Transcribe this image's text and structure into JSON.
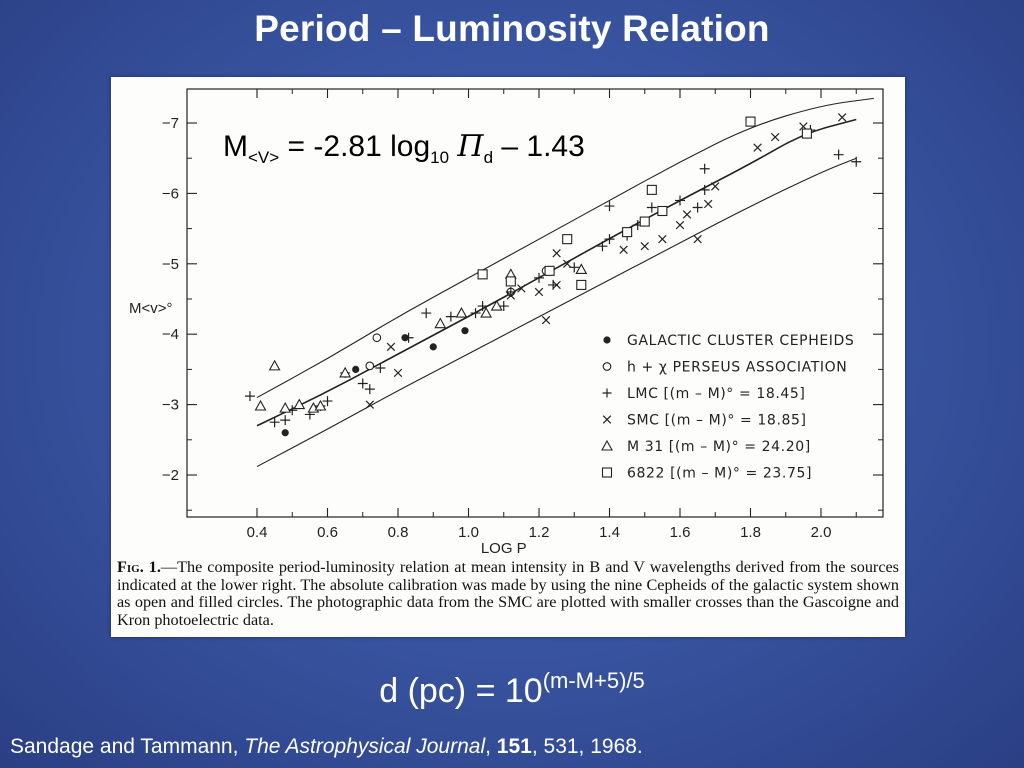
{
  "slide": {
    "title": "Period – Luminosity Relation",
    "equation": {
      "m_label": "M",
      "m_sub": "<V>",
      "rhs1": " = -2.81 log",
      "log_sub": "10",
      "pi": "Π",
      "pi_sub": "d",
      "rhs2": " – 1.43"
    },
    "distance": {
      "base": "d (pc) = 10",
      "exponent": "(m-M+5)/5"
    },
    "citation": {
      "authors": "Sandage and Tammann, ",
      "journal": "The Astrophysical Journal",
      "sep": ", ",
      "volume": "151",
      "rest": ", 531, 1968."
    }
  },
  "figure": {
    "caption_label": "Fig. 1.",
    "caption_text": "—The composite period-luminosity relation at mean intensity in B and V wavelengths derived from the sources indicated at the lower right. The absolute calibration was made by using the nine Cepheids of the galactic system shown as open and filled circles. The photographic data from the SMC are plotted with smaller crosses than the Gascoigne and Kron photoelectric data."
  },
  "chart_data": {
    "type": "scatter",
    "xlabel": "LOG P",
    "ylabel": "M<v>°",
    "xlim": [
      0.3,
      2.2
    ],
    "ylim": [
      -1.5,
      -7.5
    ],
    "x_ticks": [
      "0.4",
      "0.6",
      "0.8",
      "1.0",
      "1.2",
      "1.4",
      "1.6",
      "1.8",
      "2.0"
    ],
    "y_ticks": [
      "-7",
      "-6",
      "-5",
      "-4",
      "-3",
      "-2"
    ],
    "grid": false,
    "legend_position": "lower-right",
    "legend": [
      {
        "marker": "filled-circle",
        "label": "GALACTIC CLUSTER CEPHEIDS"
      },
      {
        "marker": "open-circle",
        "label": "h + χ  PERSEUS ASSOCIATION"
      },
      {
        "marker": "plus",
        "label": "LMC  [(m – M)° = 18.45]"
      },
      {
        "marker": "cross",
        "label": "SMC  [(m – M)° = 18.85]"
      },
      {
        "marker": "triangle",
        "label": "M 31  [(m – M)° = 24.20]"
      },
      {
        "marker": "square",
        "label": "6822  [(m – M)° = 23.75]"
      }
    ],
    "fit_line": [
      [
        0.4,
        -2.7
      ],
      [
        0.6,
        -3.18
      ],
      [
        0.8,
        -3.72
      ],
      [
        1.0,
        -4.25
      ],
      [
        1.2,
        -4.8
      ],
      [
        1.4,
        -5.36
      ],
      [
        1.6,
        -5.9
      ],
      [
        1.8,
        -6.42
      ],
      [
        1.95,
        -6.85
      ],
      [
        2.1,
        -7.05
      ]
    ],
    "upper_envelope": [
      [
        0.4,
        -3.1
      ],
      [
        0.6,
        -3.65
      ],
      [
        0.8,
        -4.25
      ],
      [
        1.0,
        -4.8
      ],
      [
        1.2,
        -5.35
      ],
      [
        1.4,
        -5.9
      ],
      [
        1.6,
        -6.45
      ],
      [
        1.8,
        -6.95
      ],
      [
        2.0,
        -7.25
      ],
      [
        2.15,
        -7.35
      ]
    ],
    "lower_envelope": [
      [
        0.4,
        -2.12
      ],
      [
        0.6,
        -2.65
      ],
      [
        0.8,
        -3.2
      ],
      [
        1.0,
        -3.72
      ],
      [
        1.2,
        -4.25
      ],
      [
        1.4,
        -4.77
      ],
      [
        1.6,
        -5.3
      ],
      [
        1.8,
        -5.82
      ],
      [
        2.0,
        -6.3
      ],
      [
        2.1,
        -6.5
      ]
    ],
    "series": [
      {
        "name": "GALACTIC CLUSTER CEPHEIDS",
        "marker": "filled-circle",
        "points": [
          [
            0.48,
            -2.6
          ],
          [
            0.68,
            -3.5
          ],
          [
            0.82,
            -3.95
          ],
          [
            0.9,
            -3.82
          ],
          [
            0.99,
            -4.05
          ]
        ]
      },
      {
        "name": "h + χ  PERSEUS ASSOCIATION",
        "marker": "open-circle",
        "points": [
          [
            0.72,
            -3.55
          ],
          [
            0.74,
            -3.95
          ],
          [
            1.12,
            -4.6
          ],
          [
            1.22,
            -4.9
          ]
        ]
      },
      {
        "name": "LMC  [(m – M)° = 18.45]",
        "marker": "plus",
        "points": [
          [
            0.38,
            -3.12
          ],
          [
            0.45,
            -2.75
          ],
          [
            0.48,
            -2.78
          ],
          [
            0.5,
            -2.92
          ],
          [
            0.55,
            -2.86
          ],
          [
            0.58,
            -2.98
          ],
          [
            0.6,
            -3.05
          ],
          [
            0.65,
            -3.45
          ],
          [
            0.7,
            -3.3
          ],
          [
            0.72,
            -3.22
          ],
          [
            0.75,
            -3.52
          ],
          [
            0.83,
            -3.95
          ],
          [
            0.88,
            -4.3
          ],
          [
            0.95,
            -4.25
          ],
          [
            1.02,
            -4.3
          ],
          [
            1.04,
            -4.4
          ],
          [
            1.1,
            -4.4
          ],
          [
            1.12,
            -4.6
          ],
          [
            1.2,
            -4.8
          ],
          [
            1.24,
            -4.7
          ],
          [
            1.3,
            -4.95
          ],
          [
            1.38,
            -5.25
          ],
          [
            1.4,
            -5.35
          ],
          [
            1.45,
            -5.4
          ],
          [
            1.48,
            -5.55
          ],
          [
            1.52,
            -5.8
          ],
          [
            1.55,
            -5.75
          ],
          [
            1.6,
            -5.9
          ],
          [
            1.65,
            -5.8
          ],
          [
            1.67,
            -6.05
          ],
          [
            1.67,
            -6.35
          ],
          [
            1.4,
            -5.82
          ],
          [
            1.97,
            -6.9
          ],
          [
            2.05,
            -6.55
          ],
          [
            2.1,
            -6.45
          ]
        ]
      },
      {
        "name": "SMC  [(m – M)° = 18.85]",
        "marker": "cross",
        "points": [
          [
            0.72,
            -3.0
          ],
          [
            0.78,
            -3.82
          ],
          [
            0.8,
            -3.45
          ],
          [
            1.12,
            -4.55
          ],
          [
            1.15,
            -4.65
          ],
          [
            1.2,
            -4.6
          ],
          [
            1.25,
            -4.7
          ],
          [
            1.25,
            -5.15
          ],
          [
            1.28,
            -5.0
          ],
          [
            1.44,
            -5.2
          ],
          [
            1.5,
            -5.25
          ],
          [
            1.55,
            -5.35
          ],
          [
            1.6,
            -5.55
          ],
          [
            1.62,
            -5.7
          ],
          [
            1.68,
            -5.85
          ],
          [
            1.65,
            -5.35
          ],
          [
            1.7,
            -6.1
          ],
          [
            1.82,
            -6.65
          ],
          [
            1.87,
            -6.8
          ],
          [
            1.95,
            -6.95
          ],
          [
            2.06,
            -7.08
          ],
          [
            1.22,
            -4.2
          ]
        ]
      },
      {
        "name": "M 31  [(m – M)° = 24.20]",
        "marker": "triangle",
        "points": [
          [
            0.45,
            -3.55
          ],
          [
            0.41,
            -2.98
          ],
          [
            0.48,
            -2.95
          ],
          [
            0.52,
            -3.0
          ],
          [
            0.56,
            -2.95
          ],
          [
            0.58,
            -2.98
          ],
          [
            0.65,
            -3.45
          ],
          [
            0.92,
            -4.15
          ],
          [
            0.98,
            -4.3
          ],
          [
            1.05,
            -4.3
          ],
          [
            1.08,
            -4.4
          ],
          [
            1.12,
            -4.85
          ],
          [
            1.32,
            -4.92
          ]
        ]
      },
      {
        "name": "6822  [(m – M)° = 23.75]",
        "marker": "square",
        "points": [
          [
            1.04,
            -4.85
          ],
          [
            1.12,
            -4.75
          ],
          [
            1.23,
            -4.9
          ],
          [
            1.28,
            -5.35
          ],
          [
            1.32,
            -4.7
          ],
          [
            1.45,
            -5.45
          ],
          [
            1.5,
            -5.6
          ],
          [
            1.52,
            -6.05
          ],
          [
            1.8,
            -7.02
          ],
          [
            1.96,
            -6.85
          ],
          [
            1.55,
            -5.75
          ]
        ]
      }
    ]
  }
}
